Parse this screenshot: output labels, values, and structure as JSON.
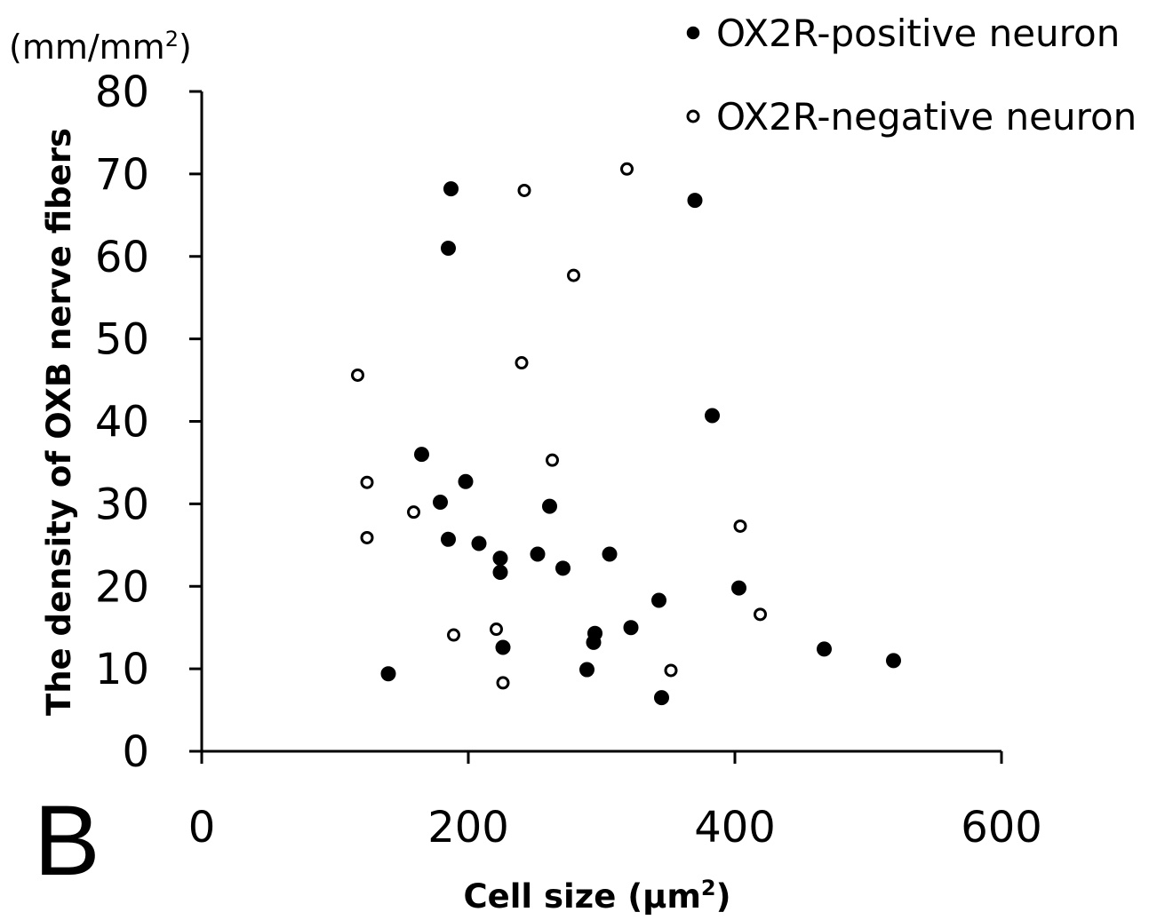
{
  "panel_label": "B",
  "colors": {
    "axis": "#000000",
    "marker_fill_positive": "#000000",
    "marker_fill_negative": "#ffffff"
  },
  "chart_data": {
    "type": "scatter",
    "title": "",
    "xlabel": "Cell size (μm²)",
    "ylabel": "The density of OXB nerve fibers",
    "y_unit": "(mm/mm²)",
    "xlim": [
      0,
      600
    ],
    "ylim": [
      0,
      80
    ],
    "x_ticks": [
      0,
      200,
      400,
      600
    ],
    "y_ticks": [
      0,
      10,
      20,
      30,
      40,
      50,
      60,
      70,
      80
    ],
    "grid": false,
    "legend_position": "top-right",
    "series": [
      {
        "name": "OX2R-positive neuron",
        "marker": "filled-circle",
        "points": [
          [
            187,
            68.2
          ],
          [
            185,
            61
          ],
          [
            370,
            66.8
          ],
          [
            383,
            40.7
          ],
          [
            165,
            36
          ],
          [
            198,
            32.7
          ],
          [
            179,
            30.2
          ],
          [
            261,
            29.7
          ],
          [
            185,
            25.7
          ],
          [
            208,
            25.2
          ],
          [
            224,
            23.4
          ],
          [
            252,
            23.9
          ],
          [
            306,
            23.9
          ],
          [
            271,
            22.2
          ],
          [
            224,
            21.7
          ],
          [
            403,
            19.8
          ],
          [
            343,
            18.3
          ],
          [
            295,
            14.3
          ],
          [
            322,
            15
          ],
          [
            294,
            13.2
          ],
          [
            226,
            12.6
          ],
          [
            467,
            12.4
          ],
          [
            519,
            11
          ],
          [
            289,
            9.9
          ],
          [
            140,
            9.4
          ],
          [
            345,
            6.5
          ]
        ]
      },
      {
        "name": "OX2R-negative neuron",
        "marker": "open-circle",
        "points": [
          [
            319,
            70.6
          ],
          [
            242,
            68
          ],
          [
            279,
            57.7
          ],
          [
            240,
            47.1
          ],
          [
            117,
            45.6
          ],
          [
            263,
            35.3
          ],
          [
            124,
            32.6
          ],
          [
            159,
            29
          ],
          [
            124,
            25.9
          ],
          [
            404,
            27.3
          ],
          [
            419,
            16.6
          ],
          [
            189,
            14.1
          ],
          [
            221,
            14.8
          ],
          [
            352,
            9.8
          ],
          [
            226,
            8.3
          ]
        ]
      }
    ]
  }
}
